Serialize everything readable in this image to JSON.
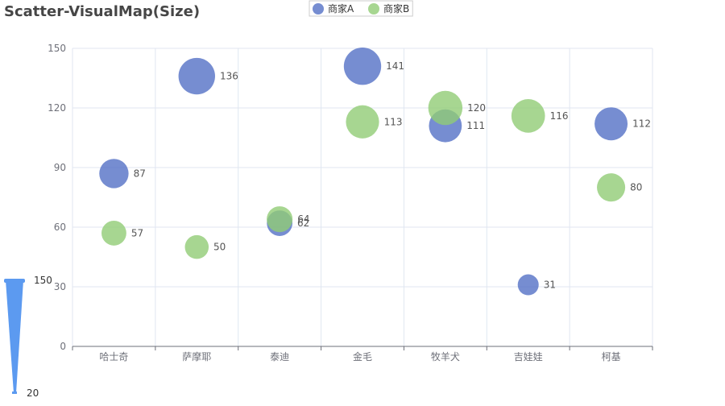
{
  "chart_data": {
    "type": "scatter",
    "title": "Scatter-VisualMap(Size)",
    "categories": [
      "哈士奇",
      "萨摩耶",
      "泰迪",
      "金毛",
      "牧羊犬",
      "吉娃娃",
      "柯基"
    ],
    "ylim": [
      0,
      150
    ],
    "yticks": [
      0,
      30,
      60,
      90,
      120,
      150
    ],
    "grid": true,
    "legend_position": "top-center",
    "series": [
      {
        "name": "商家A",
        "color": "#5470c6",
        "values": [
          87,
          136,
          62,
          141,
          111,
          31,
          112
        ]
      },
      {
        "name": "商家B",
        "color": "#91cc75",
        "values": [
          57,
          50,
          64,
          113,
          120,
          116,
          80
        ]
      }
    ],
    "visual_map": {
      "dimension": "size",
      "min": 20,
      "max": 150,
      "min_label": "20",
      "max_label": "150",
      "color": "#5c9af0",
      "position": "bottom-left"
    }
  }
}
